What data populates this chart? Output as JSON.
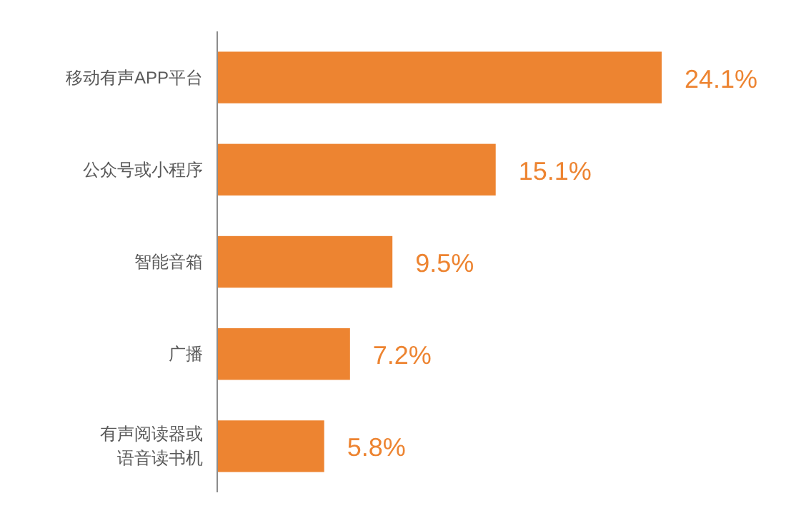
{
  "chart_data": {
    "type": "bar",
    "orientation": "horizontal",
    "categories": [
      "移动有声APP平台",
      "公众号或小程序",
      "智能音箱",
      "广播",
      "有声阅读器或语音读书机"
    ],
    "values": [
      24.1,
      15.1,
      9.5,
      7.2,
      5.8
    ],
    "value_labels": [
      "24.1%",
      "15.1%",
      "9.5%",
      "7.2%",
      "5.8%"
    ],
    "color": "#ed8431"
  }
}
